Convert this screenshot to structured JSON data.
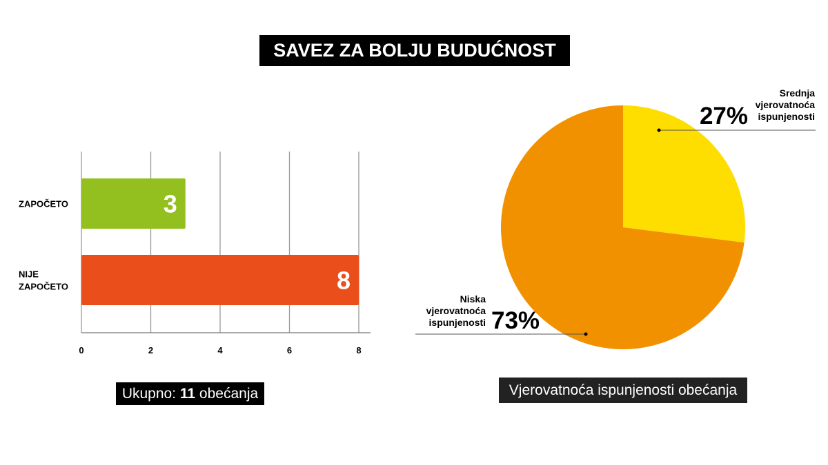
{
  "title": "SAVEZ ZA BOLJU BUDUĆNOST",
  "chart_data": [
    {
      "type": "bar",
      "orientation": "horizontal",
      "categories": [
        [
          "ZAPOČETO"
        ],
        [
          "NIJE",
          "ZAPOČETO"
        ]
      ],
      "values": [
        3,
        8
      ],
      "value_labels": [
        "3",
        "8"
      ],
      "colors": [
        "#93c01f",
        "#e94e1b"
      ],
      "xticks": [
        "0",
        "2",
        "4",
        "6",
        "8"
      ],
      "xlim": [
        0,
        8
      ],
      "grid": true,
      "caption": {
        "prefix": "Ukupno: ",
        "bold": "11",
        "suffix": " obećanja"
      }
    },
    {
      "type": "pie",
      "slices": [
        {
          "label": [
            "Srednja",
            "vjerovatnoća",
            "ispunjenosti"
          ],
          "value": 27,
          "value_label": "27%",
          "color": "#fedd00"
        },
        {
          "label": [
            "Niska",
            "vjerovatnoća",
            "ispunjenosti"
          ],
          "value": 73,
          "value_label": "73%",
          "color": "#f29100"
        }
      ],
      "caption": "Vjerovatnoća ispunjenosti obećanja"
    }
  ]
}
